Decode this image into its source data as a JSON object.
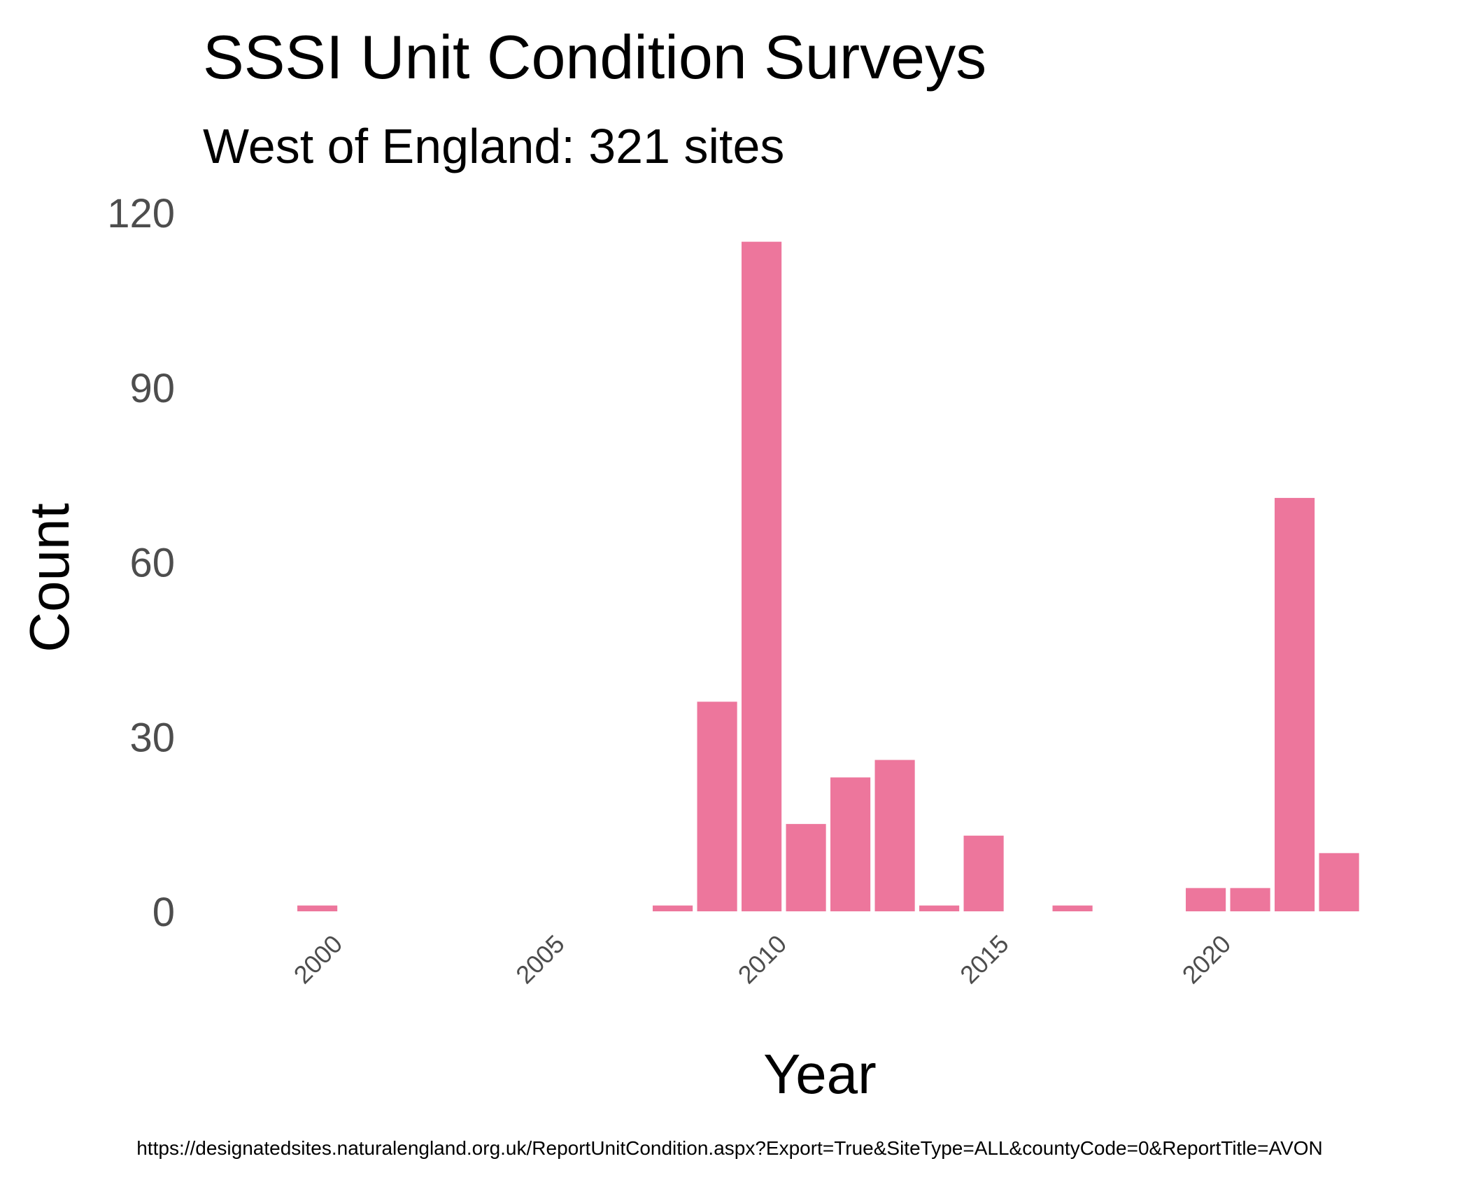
{
  "chart_data": {
    "type": "bar",
    "title": "SSSI Unit Condition Surveys",
    "subtitle": "West of England: 321 sites",
    "xlabel": "Year",
    "ylabel": "Count",
    "caption": "https://designatedsites.naturalengland.org.uk/ReportUnitCondition.aspx?Export=True&SiteType=ALL&countyCode=0&ReportTitle=AVON",
    "xlim": [
      1998.4,
      2024.4
    ],
    "ylim": [
      0,
      120
    ],
    "x_ticks": [
      "2000",
      "2005",
      "2010",
      "2015",
      "2020"
    ],
    "y_ticks": [
      "0",
      "30",
      "60",
      "90",
      "120"
    ],
    "bar_color": "#ED769C",
    "grid": false,
    "series": [
      {
        "x": [
          2000,
          2008,
          2009,
          2010,
          2011,
          2012,
          2013,
          2014,
          2015,
          2017,
          2020,
          2021,
          2022,
          2023
        ],
        "values": [
          1,
          1,
          36,
          115,
          15,
          23,
          26,
          1,
          13,
          1,
          4,
          4,
          71,
          10
        ]
      }
    ]
  }
}
